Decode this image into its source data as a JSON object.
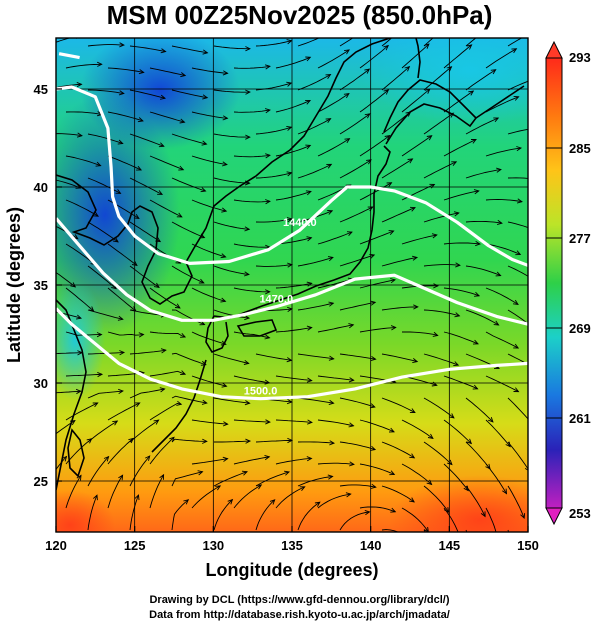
{
  "title": "MSM 00Z25Nov2025 (850.0hPa)",
  "x_axis": {
    "label": "Longitude (degrees)",
    "ticks": [
      {
        "value": 120,
        "label": "120"
      },
      {
        "value": 125,
        "label": "125"
      },
      {
        "value": 130,
        "label": "130"
      },
      {
        "value": 135,
        "label": "135"
      },
      {
        "value": 140,
        "label": "140"
      },
      {
        "value": 145,
        "label": "145"
      },
      {
        "value": 150,
        "label": "150"
      }
    ],
    "range": [
      120,
      150
    ]
  },
  "y_axis": {
    "label": "Latitude  (degrees)",
    "ticks": [
      {
        "value": 25,
        "label": "25"
      },
      {
        "value": 30,
        "label": "30"
      },
      {
        "value": 35,
        "label": "35"
      },
      {
        "value": 40,
        "label": "40"
      },
      {
        "value": 45,
        "label": "45"
      }
    ],
    "range": [
      22.4,
      47.6
    ]
  },
  "colorbar": {
    "range": [
      253,
      293
    ],
    "ticks": [
      {
        "value": 293,
        "label": "293"
      },
      {
        "value": 285,
        "label": "285"
      },
      {
        "value": 277,
        "label": "277"
      },
      {
        "value": 269,
        "label": "269"
      },
      {
        "value": 261,
        "label": "261"
      },
      {
        "value": 253,
        "label": "253"
      }
    ]
  },
  "contours": [
    {
      "label": "1440.0",
      "points": [
        [
          120.2,
          46.8
        ],
        [
          121.5,
          46.6
        ]
      ]
    },
    {
      "label": "1440.0",
      "points": [
        [
          120.0,
          45.0
        ],
        [
          121.0,
          45.1
        ],
        [
          122.5,
          44.6
        ],
        [
          123.3,
          43.0
        ],
        [
          123.5,
          41.0
        ],
        [
          123.6,
          39.5
        ],
        [
          124.0,
          38.5
        ],
        [
          125.0,
          37.5
        ],
        [
          126.5,
          36.6
        ],
        [
          128.5,
          36.1
        ],
        [
          131.0,
          36.2
        ],
        [
          133.5,
          36.8
        ],
        [
          135.5,
          37.8
        ],
        [
          137.5,
          39.3
        ],
        [
          138.5,
          40.0
        ],
        [
          140.0,
          40.0
        ],
        [
          141.5,
          39.8
        ],
        [
          143.5,
          39.2
        ],
        [
          145.5,
          38.2
        ],
        [
          147.5,
          37.0
        ],
        [
          149.0,
          36.3
        ],
        [
          150.0,
          36.0
        ]
      ]
    },
    {
      "label": "1470.0",
      "points": [
        [
          120.0,
          38.4
        ],
        [
          121.5,
          37.0
        ],
        [
          123.0,
          35.6
        ],
        [
          124.5,
          34.5
        ],
        [
          126.0,
          33.7
        ],
        [
          128.0,
          33.2
        ],
        [
          130.0,
          33.2
        ],
        [
          132.0,
          33.5
        ],
        [
          134.0,
          33.9
        ],
        [
          136.5,
          34.5
        ],
        [
          139.0,
          35.3
        ],
        [
          141.5,
          35.5
        ],
        [
          143.5,
          34.8
        ],
        [
          145.5,
          34.1
        ],
        [
          148.0,
          33.4
        ],
        [
          150.0,
          33.0
        ]
      ]
    },
    {
      "label": "1500.0",
      "points": [
        [
          120.0,
          33.8
        ],
        [
          121.0,
          33.0
        ],
        [
          122.5,
          32.0
        ],
        [
          124.0,
          31.0
        ],
        [
          126.0,
          30.2
        ],
        [
          128.0,
          29.7
        ],
        [
          130.5,
          29.3
        ],
        [
          133.0,
          29.2
        ],
        [
          136.0,
          29.3
        ],
        [
          139.0,
          29.7
        ],
        [
          142.0,
          30.3
        ],
        [
          145.0,
          30.7
        ],
        [
          148.0,
          30.9
        ],
        [
          150.0,
          31.0
        ]
      ]
    }
  ],
  "credits": {
    "line1": "Drawing by DCL (https://www.gfd-dennou.org/library/dcl/)",
    "line2": "Data from http://database.rish.kyoto-u.ac.jp/arch/jmadata/"
  },
  "colors": {
    "contour": "#ffffff",
    "coast": "#000000",
    "streamline": "#000000",
    "colorbar_top": "#ff3a28",
    "colorbar_bottom": "#e020c0"
  }
}
